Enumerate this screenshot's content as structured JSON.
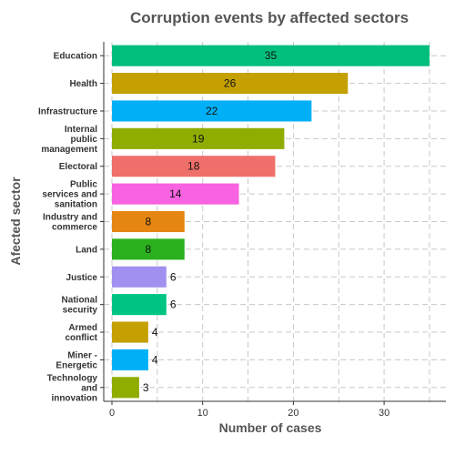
{
  "chart_data": {
    "type": "bar",
    "orientation": "horizontal",
    "title": "Corruption events by affected sectors",
    "xlabel": "Number of cases",
    "ylabel": "Afected sector",
    "xlim": [
      0,
      36
    ],
    "xticks": [
      0,
      10,
      20,
      30
    ],
    "grid": true,
    "categories": [
      "Education",
      "Health",
      "Infrastructure",
      "Internal public management",
      "Electoral",
      "Public services and sanitation",
      "Industry and commerce",
      "Land",
      "Justice",
      "National security",
      "Armed conflict",
      "Miner - Energetic",
      "Technology and innovation"
    ],
    "label_lines": [
      [
        "Education"
      ],
      [
        "Health"
      ],
      [
        "Infrastructure"
      ],
      [
        "Internal",
        "public",
        "management"
      ],
      [
        "Electoral"
      ],
      [
        "Public",
        "services and",
        "sanitation"
      ],
      [
        "Industry and",
        "commerce"
      ],
      [
        "Land"
      ],
      [
        "Justice"
      ],
      [
        "National",
        "security"
      ],
      [
        "Armed",
        "conflict"
      ],
      [
        "Miner -",
        "Energetic"
      ],
      [
        "Technology",
        "and",
        "innovation"
      ]
    ],
    "values": [
      35,
      26,
      22,
      19,
      18,
      14,
      8,
      8,
      6,
      6,
      4,
      4,
      3
    ],
    "colors": [
      "#00bf7d",
      "#c4a000",
      "#00b0f6",
      "#8fad00",
      "#ef6f6a",
      "#f763e0",
      "#e68612",
      "#2ab11d",
      "#a38ff0",
      "#00c483",
      "#c4a000",
      "#00b0f6",
      "#8fad00"
    ]
  }
}
